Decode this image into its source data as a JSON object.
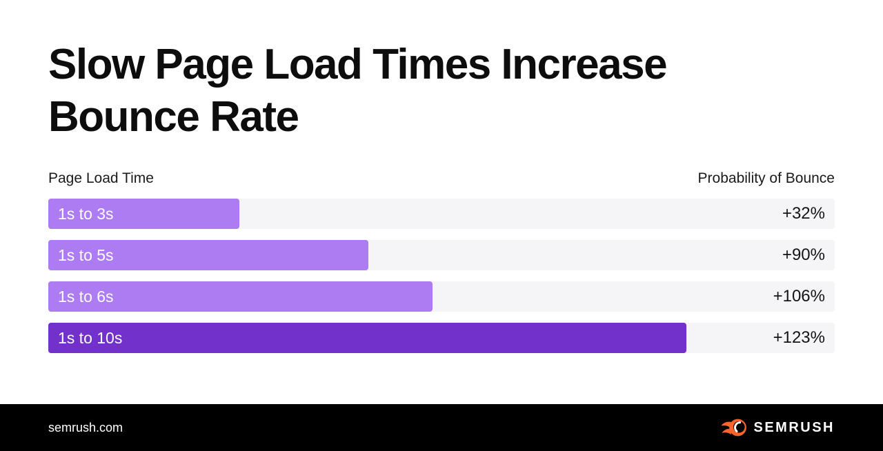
{
  "header": {
    "title_line1": "Slow Page Load Times Increase",
    "title_line2": "Bounce Rate"
  },
  "chart": {
    "left_header": "Page Load Time",
    "right_header": "Probability of Bounce"
  },
  "chart_data": {
    "type": "bar",
    "orientation": "horizontal",
    "title": "Slow Page Load Times Increase Bounce Rate",
    "categories": [
      "1s to 3s",
      "1s to 5s",
      "1s to 6s",
      "1s to 10s"
    ],
    "values": [
      32,
      90,
      106,
      123
    ],
    "value_labels": [
      "+32%",
      "+90%",
      "+106%",
      "+123%"
    ],
    "load_time_upper_seconds": [
      3,
      5,
      6,
      10
    ],
    "bar_width_pct_of_track": [
      24.3,
      40.7,
      48.9,
      81.1
    ],
    "category_axis_label": "Page Load Time",
    "value_axis_label": "Probability of Bounce",
    "emphasized_index": 3,
    "legend": "none",
    "grid": "off"
  },
  "colors": {
    "bar_light": "#ae7cf2",
    "bar_emphasis": "#7231ca",
    "track": "#f5f4f6",
    "title_text": "#0d0d0d",
    "footer_bg": "#000000",
    "brand_orange": "#ff642d",
    "bar_label_text": "#ffffff",
    "value_text": "#141414"
  },
  "footer": {
    "url": "semrush.com",
    "brand": "SEMRUSH"
  }
}
